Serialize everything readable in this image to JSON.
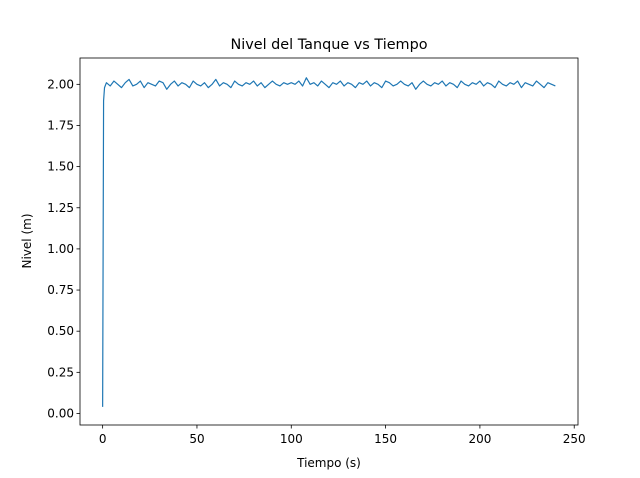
{
  "chart_data": {
    "type": "line",
    "title": "Nivel del Tanque vs Tiempo",
    "xlabel": "Tiempo (s)",
    "ylabel": "Nivel (m)",
    "xlim": [
      -12,
      252
    ],
    "ylim": [
      -0.07,
      2.16
    ],
    "xticks": [
      0,
      50,
      100,
      150,
      200,
      250
    ],
    "yticks": [
      {
        "value": 0,
        "label": "0.00"
      },
      0.25,
      {
        "value": 0.5,
        "label": "0.50"
      },
      0.75,
      {
        "value": 1,
        "label": "1.00"
      },
      1.25,
      {
        "value": 1.5,
        "label": "1.50"
      },
      1.75,
      {
        "value": 2,
        "label": "2.00"
      }
    ],
    "grid": false,
    "x": [
      0,
      0.5,
      1,
      2,
      4,
      6,
      8,
      10,
      12,
      14,
      16,
      18,
      20,
      22,
      24,
      26,
      28,
      30,
      32,
      34,
      36,
      38,
      40,
      42,
      44,
      46,
      48,
      50,
      52,
      54,
      56,
      58,
      60,
      62,
      64,
      66,
      68,
      70,
      72,
      74,
      76,
      78,
      80,
      82,
      84,
      86,
      88,
      90,
      92,
      94,
      96,
      98,
      100,
      102,
      104,
      106,
      108,
      110,
      112,
      114,
      116,
      118,
      120,
      122,
      124,
      126,
      128,
      130,
      132,
      134,
      136,
      138,
      140,
      142,
      144,
      146,
      148,
      150,
      152,
      154,
      156,
      158,
      160,
      162,
      164,
      166,
      168,
      170,
      172,
      174,
      176,
      178,
      180,
      182,
      184,
      186,
      188,
      190,
      192,
      194,
      196,
      198,
      200,
      202,
      204,
      206,
      208,
      210,
      212,
      214,
      216,
      218,
      220,
      222,
      224,
      226,
      228,
      230,
      232,
      234,
      236,
      238,
      240
    ],
    "series": [
      {
        "name": "Nivel",
        "color": "#1f77b4",
        "values": [
          0.04,
          1.9,
          1.98,
          2.01,
          1.99,
          2.02,
          2.0,
          1.98,
          2.01,
          2.03,
          1.99,
          2.0,
          2.02,
          1.98,
          2.01,
          2.0,
          1.99,
          2.02,
          2.01,
          1.97,
          2.0,
          2.02,
          1.99,
          2.01,
          2.0,
          1.98,
          2.02,
          2.0,
          1.99,
          2.01,
          1.98,
          2.0,
          2.03,
          1.99,
          2.01,
          2.0,
          1.98,
          2.02,
          2.0,
          1.99,
          2.01,
          2.0,
          2.02,
          1.99,
          2.01,
          1.98,
          2.0,
          2.02,
          2.0,
          1.99,
          2.01,
          2.0,
          2.01,
          2.0,
          2.02,
          1.99,
          2.04,
          2.0,
          2.01,
          1.99,
          2.02,
          2.0,
          1.98,
          2.01,
          2.0,
          2.02,
          1.99,
          2.01,
          2.0,
          1.98,
          2.01,
          2.0,
          2.02,
          1.99,
          2.01,
          2.0,
          1.98,
          2.02,
          2.01,
          1.99,
          2.0,
          2.02,
          2.0,
          1.99,
          2.01,
          1.97,
          2.0,
          2.02,
          2.0,
          1.99,
          2.01,
          2.0,
          2.02,
          1.99,
          2.01,
          2.0,
          1.98,
          2.02,
          2.0,
          1.99,
          2.01,
          2.0,
          2.02,
          1.99,
          2.01,
          2.0,
          1.98,
          2.02,
          2.0,
          1.99,
          2.01,
          2.0,
          2.02,
          1.98,
          2.01,
          2.0,
          1.99,
          2.02,
          2.0,
          1.98,
          2.01,
          2.0,
          1.99
        ]
      }
    ]
  }
}
